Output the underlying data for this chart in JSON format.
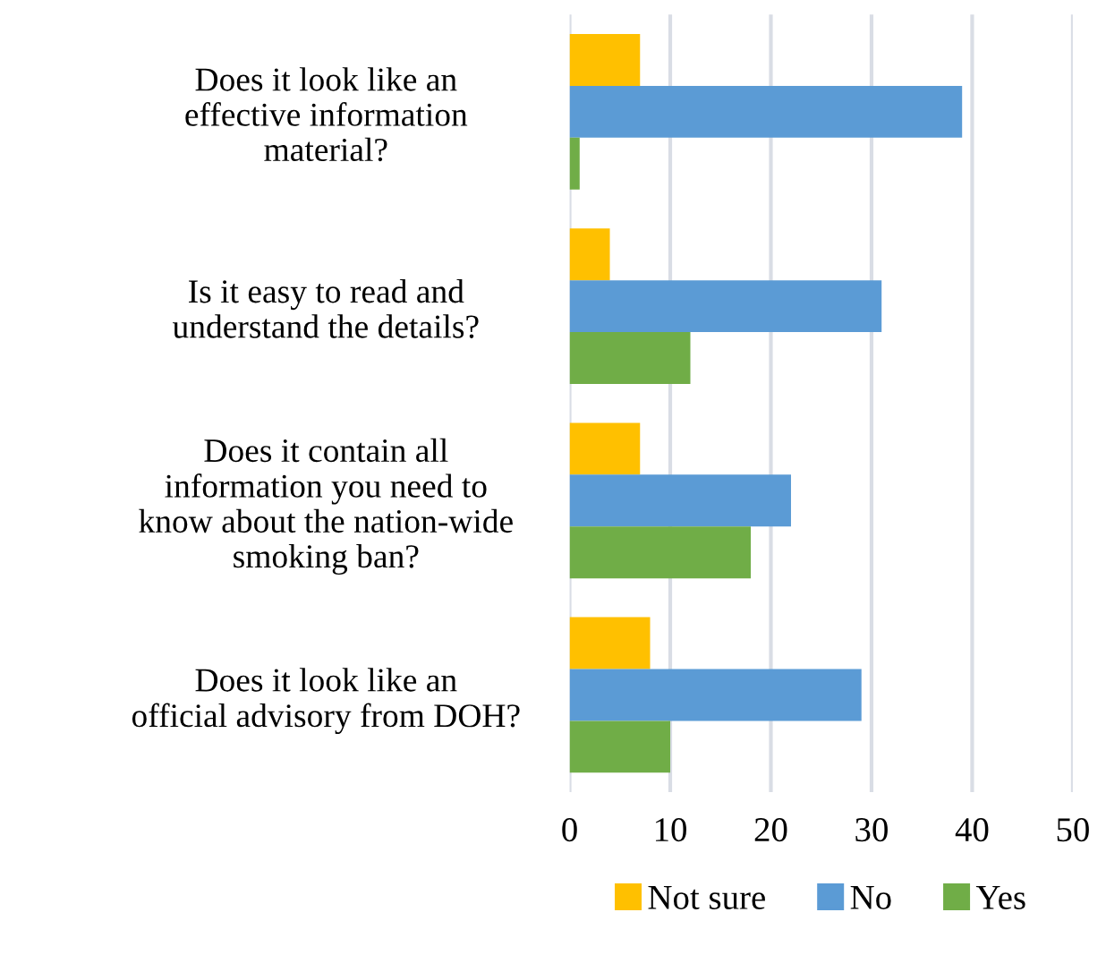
{
  "chart_data": {
    "type": "bar",
    "orientation": "horizontal",
    "categories": [
      "Does it look like an effective information material?",
      "Is it easy to read and understand the details?",
      "Does it contain all information you need to know about the nation-wide smoking ban?",
      "Does it look like an official advisory from DOH?"
    ],
    "series": [
      {
        "name": "Not sure",
        "color": "#ffc000",
        "values": [
          7,
          4,
          7,
          8
        ]
      },
      {
        "name": "No",
        "color": "#5b9bd5",
        "values": [
          39,
          31,
          22,
          29
        ]
      },
      {
        "name": "Yes",
        "color": "#70ad47",
        "values": [
          1,
          12,
          18,
          10
        ]
      }
    ],
    "xlim": [
      0,
      50
    ],
    "xticks": [
      0,
      10,
      20,
      30,
      40,
      50
    ],
    "grid": "x",
    "legend": "bottom"
  }
}
